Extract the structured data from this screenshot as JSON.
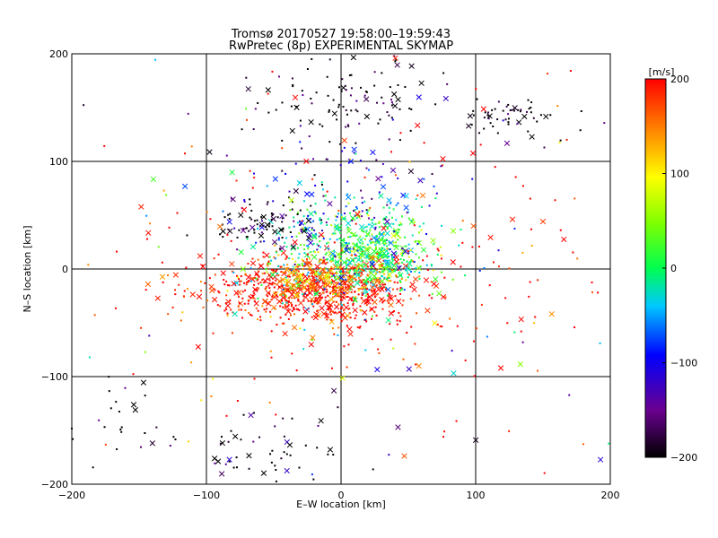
{
  "chart_data": {
    "type": "scatter",
    "title": "Tromsø 20170527 19:58:00–19:59:43",
    "subtitle": "RwPretec (8p) EXPERIMENTAL SKYMAP",
    "xlabel": "E–W location [km]",
    "ylabel": "N–S location [km]",
    "xlim": [
      -200,
      200
    ],
    "ylim": [
      -200,
      200
    ],
    "x_ticks": [
      -200,
      -100,
      0,
      100,
      200
    ],
    "y_ticks": [
      -200,
      -100,
      0,
      100,
      200
    ],
    "x_tick_labels": [
      "−200",
      "−100",
      "0",
      "100",
      "200"
    ],
    "y_tick_labels": [
      "−200",
      "−100",
      "0",
      "100",
      "200"
    ],
    "grid": true,
    "marker_types": [
      "dot",
      "x"
    ],
    "colorbar": {
      "label": "[m/s]",
      "range": [
        -200,
        200
      ],
      "ticks": [
        200,
        100,
        0,
        -100,
        -200
      ],
      "tick_labels": [
        "200",
        "100",
        "0",
        "−100",
        "−200"
      ],
      "colormap": "black-purple-blue-cyan-green-yellow-red"
    },
    "clusters": [
      {
        "region": "red cloud",
        "x_center": -20,
        "y_center": -20,
        "x_spread": 40,
        "y_spread": 15,
        "velocity": 200,
        "count": 700
      },
      {
        "region": "green/cyan cloud",
        "x_center": 25,
        "y_center": 15,
        "x_spread": 22,
        "y_spread": 18,
        "velocity": 20,
        "count": 380
      },
      {
        "region": "mixed central",
        "x_center": -5,
        "y_center": 20,
        "x_spread": 35,
        "y_spread": 30,
        "velocity": -20,
        "count": 280
      },
      {
        "region": "yellow/orange band",
        "x_center": -10,
        "y_center": -5,
        "x_spread": 25,
        "y_spread": 10,
        "velocity": 130,
        "count": 180
      },
      {
        "region": "black north-center",
        "x_center": -5,
        "y_center": 160,
        "x_spread": 40,
        "y_spread": 25,
        "velocity": -200,
        "count": 120
      },
      {
        "region": "black north-east",
        "x_center": 125,
        "y_center": 140,
        "x_spread": 20,
        "y_spread": 12,
        "velocity": -200,
        "count": 60
      },
      {
        "region": "black south-center",
        "x_center": -40,
        "y_center": -170,
        "x_spread": 30,
        "y_spread": 20,
        "velocity": -200,
        "count": 50
      },
      {
        "region": "black south-west",
        "x_center": -160,
        "y_center": -150,
        "x_spread": 25,
        "y_spread": 25,
        "velocity": -200,
        "count": 30
      },
      {
        "region": "black/purple north-west",
        "x_center": -55,
        "y_center": 40,
        "x_spread": 20,
        "y_spread": 12,
        "velocity": -200,
        "count": 90
      },
      {
        "region": "red sparse halo",
        "x_center": 20,
        "y_center": 0,
        "x_spread": 120,
        "y_spread": 80,
        "velocity": 200,
        "count": 250
      },
      {
        "region": "blue/purple north",
        "x_center": 10,
        "y_center": 60,
        "x_spread": 40,
        "y_spread": 35,
        "velocity": -110,
        "count": 120
      },
      {
        "region": "mixed sparse background",
        "x_center": 0,
        "y_center": 0,
        "x_spread": 150,
        "y_spread": 150,
        "velocity": 0,
        "count": 90
      }
    ]
  }
}
